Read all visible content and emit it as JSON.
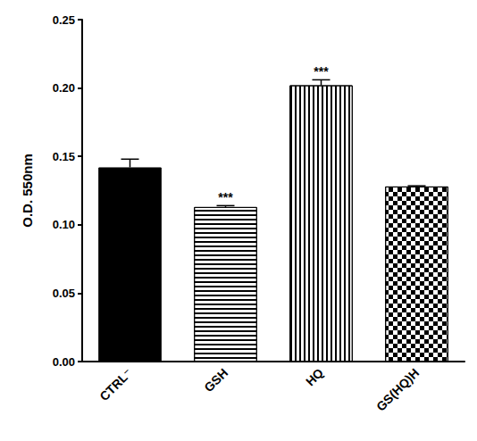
{
  "chart_data": {
    "type": "bar",
    "y_label": "O.D. 550nm",
    "categories": [
      "CTRL⁻",
      "GSH",
      "HQ",
      "GS(HQ)H"
    ],
    "values": [
      0.142,
      0.113,
      0.202,
      0.128
    ],
    "errors": [
      0.006,
      0.001,
      0.004,
      0.0005
    ],
    "colors": [
      "#000000",
      "#ffffff",
      "#ffffff",
      "#ffffff"
    ],
    "ylim": [
      0,
      0.25
    ],
    "yticks": [
      {
        "value": 0,
        "label": "0.00"
      },
      {
        "value": 0.05,
        "label": "0.05"
      },
      {
        "value": 0.1,
        "label": "0.10"
      },
      {
        "value": 0.15,
        "label": "0.15"
      },
      {
        "value": 0.2,
        "label": "0.20"
      },
      {
        "value": 0.25,
        "label": "0.25"
      }
    ],
    "annotations": [
      {
        "category": "GSH",
        "text": "***"
      },
      {
        "category": "HQ",
        "text": "***"
      }
    ],
    "grid": false
  }
}
